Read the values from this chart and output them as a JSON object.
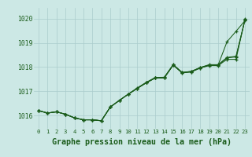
{
  "background_color": "#cce8e5",
  "grid_color": "#aacccc",
  "line_color": "#1a5c1a",
  "title": "Graphe pression niveau de la mer (hPa)",
  "xlim": [
    -0.5,
    23.5
  ],
  "ylim": [
    1015.45,
    1020.45
  ],
  "yticks": [
    1016,
    1017,
    1018,
    1019,
    1020
  ],
  "series": [
    [
      1016.2,
      1016.1,
      1016.15,
      1016.05,
      1015.9,
      1015.82,
      1015.82,
      1015.78,
      1016.35,
      1016.62,
      1016.88,
      1017.12,
      1017.35,
      1017.55,
      1017.55,
      1018.1,
      1017.78,
      1017.82,
      1017.98,
      1018.08,
      1018.08,
      1019.05,
      1019.48,
      1019.92
    ],
    [
      1016.2,
      1016.1,
      1016.15,
      1016.05,
      1015.9,
      1015.82,
      1015.82,
      1015.78,
      1016.35,
      1016.62,
      1016.88,
      1017.12,
      1017.35,
      1017.55,
      1017.55,
      1018.08,
      1017.76,
      1017.8,
      1017.96,
      1018.06,
      1018.06,
      1018.32,
      1018.32,
      1020.0
    ],
    [
      1016.2,
      1016.1,
      1016.15,
      1016.05,
      1015.9,
      1015.82,
      1015.82,
      1015.78,
      1016.35,
      1016.62,
      1016.88,
      1017.12,
      1017.35,
      1017.55,
      1017.55,
      1018.08,
      1017.76,
      1017.8,
      1017.96,
      1018.08,
      1018.08,
      1018.38,
      1018.42,
      1019.95
    ],
    [
      1016.2,
      1016.1,
      1016.15,
      1016.05,
      1015.9,
      1015.82,
      1015.82,
      1015.78,
      1016.35,
      1016.62,
      1016.88,
      1017.14,
      1017.37,
      1017.57,
      1017.58,
      1018.1,
      1017.78,
      1017.82,
      1017.98,
      1018.1,
      1018.1,
      1018.4,
      1018.45,
      1019.95
    ]
  ],
  "marker_indices": [
    0,
    1,
    2,
    3,
    4,
    5,
    6,
    7,
    8,
    9,
    10,
    11,
    12,
    13,
    14,
    15,
    16,
    17,
    18,
    19,
    20,
    21,
    22,
    23
  ],
  "marked_series_idx": [
    0,
    1,
    2,
    3
  ]
}
